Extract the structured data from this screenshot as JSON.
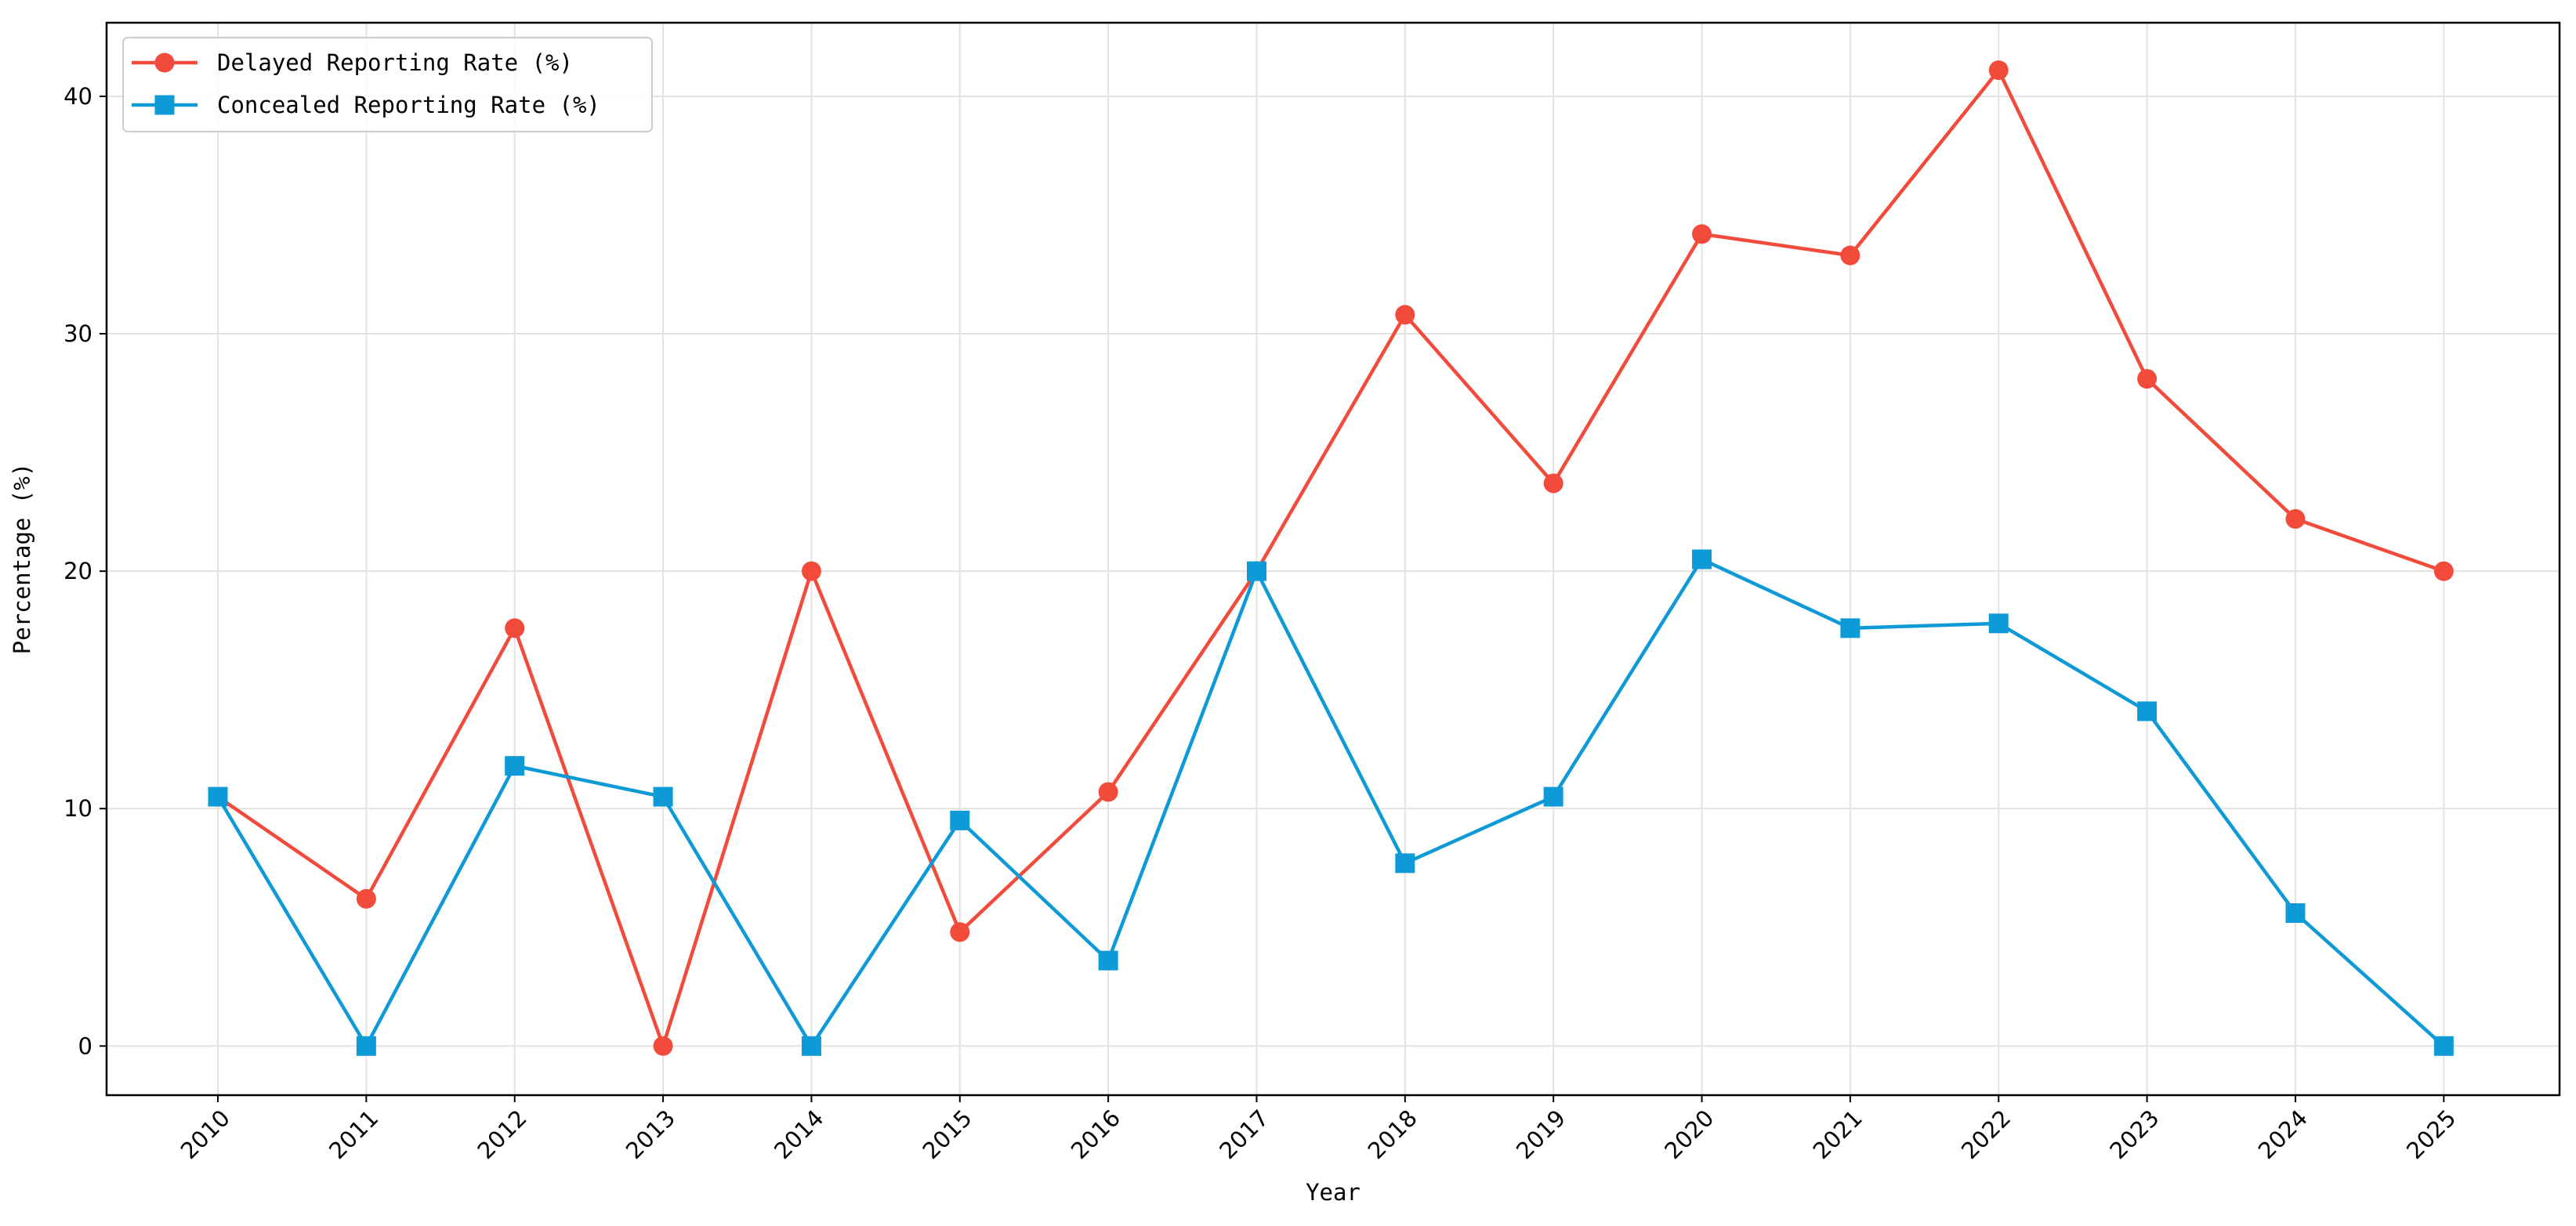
{
  "chart_data": {
    "type": "line",
    "x_label": "Year",
    "y_label": "Percentage (%)",
    "x": [
      2010,
      2011,
      2012,
      2013,
      2014,
      2015,
      2016,
      2017,
      2018,
      2019,
      2020,
      2021,
      2022,
      2023,
      2024,
      2025
    ],
    "series": [
      {
        "name": "Delayed Reporting Rate (%)",
        "color": "#f24a3b",
        "marker": "circle",
        "values": [
          10.5,
          6.2,
          17.6,
          0,
          20,
          4.8,
          10.7,
          20,
          30.8,
          23.7,
          34.2,
          33.3,
          41.1,
          28.1,
          22.2,
          20
        ]
      },
      {
        "name": "Concealed Reporting Rate (%)",
        "color": "#0e9ad6",
        "marker": "square",
        "values": [
          10.5,
          0,
          11.8,
          10.5,
          0,
          9.5,
          3.6,
          20,
          7.7,
          10.5,
          20.5,
          17.6,
          17.8,
          14.1,
          5.6,
          0
        ]
      }
    ],
    "xlim": [
      2009.25,
      2025.78
    ],
    "ylim": [
      -2.07,
      43.1
    ],
    "xticks": [
      2010,
      2011,
      2012,
      2013,
      2014,
      2015,
      2016,
      2017,
      2018,
      2019,
      2020,
      2021,
      2022,
      2023,
      2024,
      2025
    ],
    "yticks": [
      0,
      10,
      20,
      30,
      40
    ],
    "grid": true,
    "legend": "upper left"
  }
}
